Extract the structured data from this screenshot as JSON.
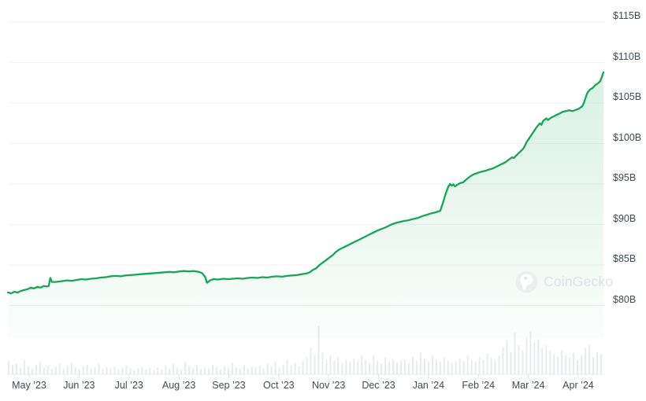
{
  "watermark_label": "CoinGecko",
  "chart_data": {
    "type": "area",
    "title": "",
    "x_unit": "days since 2023-05-01",
    "y_unit": "USD billions",
    "x_axis_labels": [
      "May ’23",
      "Jun ’23",
      "Jul ’23",
      "Aug ’23",
      "Sep ’23",
      "Oct ’23",
      "Nov ’23",
      "Dec ’23",
      "Jan ’24",
      "Feb ’24",
      "Mar ’24",
      "Apr ’24"
    ],
    "y_axis_labels": [
      "$115B",
      "$110B",
      "$105B",
      "$100B",
      "$95B",
      "$90B",
      "$85B",
      "$80B"
    ],
    "ylim": [
      80,
      115
    ],
    "grid": "horizontal",
    "legend": "none",
    "watermark": "CoinGecko",
    "series": [
      {
        "name": "market-cap-usd-billions",
        "points": [
          [
            0,
            81.6
          ],
          [
            2,
            81.5
          ],
          [
            4,
            81.7
          ],
          [
            6,
            81.6
          ],
          [
            8,
            81.8
          ],
          [
            10,
            81.9
          ],
          [
            12,
            82.0
          ],
          [
            14,
            82.2
          ],
          [
            16,
            82.1
          ],
          [
            18,
            82.3
          ],
          [
            20,
            82.2
          ],
          [
            22,
            82.4
          ],
          [
            24,
            82.35
          ],
          [
            25,
            82.4
          ],
          [
            26,
            83.4
          ],
          [
            27,
            82.9
          ],
          [
            29,
            82.9
          ],
          [
            31,
            82.95
          ],
          [
            33,
            83.0
          ],
          [
            36,
            83.1
          ],
          [
            39,
            83.05
          ],
          [
            42,
            83.15
          ],
          [
            45,
            83.25
          ],
          [
            48,
            83.2
          ],
          [
            51,
            83.3
          ],
          [
            54,
            83.35
          ],
          [
            57,
            83.45
          ],
          [
            60,
            83.5
          ],
          [
            63,
            83.6
          ],
          [
            66,
            83.65
          ],
          [
            69,
            83.6
          ],
          [
            72,
            83.7
          ],
          [
            75,
            83.75
          ],
          [
            78,
            83.8
          ],
          [
            81,
            83.85
          ],
          [
            84,
            83.9
          ],
          [
            87,
            83.95
          ],
          [
            90,
            84.0
          ],
          [
            93,
            84.05
          ],
          [
            96,
            84.1
          ],
          [
            99,
            84.15
          ],
          [
            102,
            84.1
          ],
          [
            105,
            84.2
          ],
          [
            108,
            84.25
          ],
          [
            111,
            84.2
          ],
          [
            114,
            84.25
          ],
          [
            117,
            84.15
          ],
          [
            119,
            84.0
          ],
          [
            121,
            83.5
          ],
          [
            122,
            82.8
          ],
          [
            124,
            83.1
          ],
          [
            126,
            83.25
          ],
          [
            129,
            83.2
          ],
          [
            132,
            83.3
          ],
          [
            135,
            83.25
          ],
          [
            138,
            83.3
          ],
          [
            141,
            83.35
          ],
          [
            144,
            83.3
          ],
          [
            147,
            83.4
          ],
          [
            150,
            83.45
          ],
          [
            153,
            83.4
          ],
          [
            156,
            83.5
          ],
          [
            159,
            83.45
          ],
          [
            162,
            83.55
          ],
          [
            165,
            83.6
          ],
          [
            168,
            83.55
          ],
          [
            171,
            83.65
          ],
          [
            174,
            83.7
          ],
          [
            177,
            83.75
          ],
          [
            180,
            83.85
          ],
          [
            183,
            83.95
          ],
          [
            185,
            84.1
          ],
          [
            187,
            84.4
          ],
          [
            189,
            84.6
          ],
          [
            191,
            85.0
          ],
          [
            193,
            85.3
          ],
          [
            195,
            85.6
          ],
          [
            197,
            85.9
          ],
          [
            199,
            86.2
          ],
          [
            201,
            86.6
          ],
          [
            203,
            86.9
          ],
          [
            205,
            87.1
          ],
          [
            207,
            87.3
          ],
          [
            209,
            87.5
          ],
          [
            211,
            87.7
          ],
          [
            213,
            87.9
          ],
          [
            215,
            88.1
          ],
          [
            217,
            88.3
          ],
          [
            219,
            88.5
          ],
          [
            221,
            88.7
          ],
          [
            223,
            88.9
          ],
          [
            225,
            89.1
          ],
          [
            227,
            89.3
          ],
          [
            229,
            89.45
          ],
          [
            231,
            89.6
          ],
          [
            233,
            89.8
          ],
          [
            235,
            90.0
          ],
          [
            237,
            90.15
          ],
          [
            239,
            90.25
          ],
          [
            241,
            90.35
          ],
          [
            243,
            90.45
          ],
          [
            245,
            90.5
          ],
          [
            247,
            90.6
          ],
          [
            249,
            90.7
          ],
          [
            251,
            90.8
          ],
          [
            253,
            90.95
          ],
          [
            255,
            91.1
          ],
          [
            257,
            91.2
          ],
          [
            259,
            91.35
          ],
          [
            261,
            91.45
          ],
          [
            263,
            91.55
          ],
          [
            265,
            91.7
          ],
          [
            266,
            92.3
          ],
          [
            267,
            92.9
          ],
          [
            268,
            93.6
          ],
          [
            269,
            94.2
          ],
          [
            270,
            94.7
          ],
          [
            271,
            95.0
          ],
          [
            272,
            94.8
          ],
          [
            273,
            94.95
          ],
          [
            274,
            94.7
          ],
          [
            275,
            94.85
          ],
          [
            277,
            95.1
          ],
          [
            279,
            95.2
          ],
          [
            281,
            95.55
          ],
          [
            283,
            95.9
          ],
          [
            285,
            96.15
          ],
          [
            287,
            96.3
          ],
          [
            289,
            96.45
          ],
          [
            291,
            96.55
          ],
          [
            293,
            96.65
          ],
          [
            295,
            96.8
          ],
          [
            297,
            96.9
          ],
          [
            299,
            97.1
          ],
          [
            301,
            97.3
          ],
          [
            303,
            97.5
          ],
          [
            305,
            97.7
          ],
          [
            307,
            98.0
          ],
          [
            309,
            98.3
          ],
          [
            310,
            98.2
          ],
          [
            312,
            98.6
          ],
          [
            314,
            99.0
          ],
          [
            316,
            99.4
          ],
          [
            317,
            99.8
          ],
          [
            318,
            100.2
          ],
          [
            320,
            100.8
          ],
          [
            322,
            101.4
          ],
          [
            324,
            102.0
          ],
          [
            326,
            102.5
          ],
          [
            327,
            102.3
          ],
          [
            328,
            102.8
          ],
          [
            330,
            103.1
          ],
          [
            331,
            102.9
          ],
          [
            333,
            103.2
          ],
          [
            335,
            103.4
          ],
          [
            336,
            103.5
          ],
          [
            338,
            103.7
          ],
          [
            340,
            103.9
          ],
          [
            342,
            104.0
          ],
          [
            344,
            104.1
          ],
          [
            346,
            104.0
          ],
          [
            348,
            104.15
          ],
          [
            350,
            104.3
          ],
          [
            352,
            104.6
          ],
          [
            353,
            105.0
          ],
          [
            354,
            105.6
          ],
          [
            355,
            106.2
          ],
          [
            356,
            106.5
          ],
          [
            357,
            106.7
          ],
          [
            358,
            106.8
          ],
          [
            359,
            107.0
          ],
          [
            360,
            107.2
          ],
          [
            361,
            107.35
          ],
          [
            362,
            107.5
          ],
          [
            363,
            107.7
          ],
          [
            364,
            108.2
          ],
          [
            365,
            108.8
          ]
        ]
      }
    ],
    "volume_bars": {
      "name": "volume-relative-heights",
      "relative_heights": [
        0.28,
        0.18,
        0.22,
        0.14,
        0.3,
        0.16,
        0.12,
        0.2,
        0.26,
        0.14,
        0.18,
        0.1,
        0.16,
        0.22,
        0.12,
        0.18,
        0.24,
        0.14,
        0.1,
        0.16,
        0.2,
        0.12,
        0.15,
        0.22,
        0.11,
        0.14,
        0.12,
        0.16,
        0.1,
        0.14,
        0.18,
        0.12,
        0.08,
        0.12,
        0.16,
        0.1,
        0.13,
        0.09,
        0.14,
        0.1,
        0.18,
        0.12,
        0.22,
        0.14,
        0.1,
        0.26,
        0.16,
        0.12,
        0.18,
        0.1,
        0.14,
        0.12,
        0.2,
        0.14,
        0.1,
        0.16,
        0.12,
        0.24,
        0.14,
        0.1,
        0.18,
        0.12,
        0.15,
        0.14,
        0.18,
        0.12,
        0.22,
        0.16,
        0.26,
        0.14,
        0.2,
        0.3,
        0.18,
        0.24,
        0.16,
        0.28,
        0.35,
        0.55,
        0.4,
        1.0,
        0.45,
        0.3,
        0.38,
        0.28,
        0.35,
        0.24,
        0.3,
        0.26,
        0.32,
        0.28,
        0.38,
        0.3,
        0.24,
        0.4,
        0.28,
        0.22,
        0.34,
        0.26,
        0.3,
        0.24,
        0.28,
        0.3,
        0.24,
        0.36,
        0.28,
        0.44,
        0.32,
        0.26,
        0.38,
        0.3,
        0.26,
        0.34,
        0.28,
        0.24,
        0.26,
        0.32,
        0.28,
        0.38,
        0.3,
        0.26,
        0.36,
        0.3,
        0.42,
        0.34,
        0.3,
        0.38,
        0.55,
        0.7,
        0.45,
        0.85,
        0.6,
        0.5,
        0.75,
        0.88,
        0.65,
        0.72,
        0.55,
        0.6,
        0.48,
        0.42,
        0.36,
        0.5,
        0.4,
        0.34,
        0.44,
        0.3,
        0.38,
        0.55,
        0.6,
        0.35,
        0.45,
        0.4
      ]
    },
    "colors": {
      "line": "#12a854",
      "fill_top": "rgba(18,168,84,0.16)",
      "fill_bottom": "rgba(18,168,84,0.02)",
      "volume": "#e8ebef",
      "grid": "#f1f2f5",
      "axis_line": "#e6e9ed",
      "tick": "#dfe3e8",
      "axis_text": "#414c57",
      "watermark_text": "#dde1e6",
      "watermark_logo": "#eceef0"
    }
  }
}
